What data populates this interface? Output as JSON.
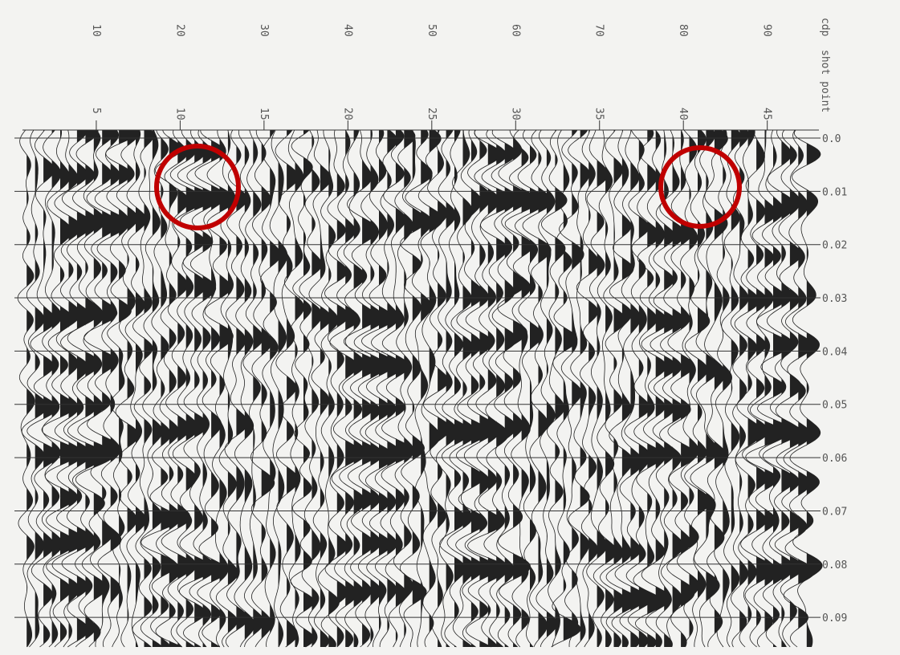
{
  "chart_data": {
    "type": "seismic",
    "x_label": "cdp",
    "x2_label": "shot point",
    "xlim": [
      1.2,
      95.2
    ],
    "xticks": [
      10,
      20,
      30,
      40,
      50,
      60,
      70,
      80,
      90
    ],
    "x2lim": [
      0.6,
      47.6
    ],
    "x2ticks": [
      5,
      10,
      15,
      20,
      25,
      30,
      35,
      40,
      45
    ],
    "ylim": [
      0,
      0.0945
    ],
    "yticks": [
      {
        "value": 0,
        "label": "0.0"
      },
      0.01,
      0.02,
      0.03,
      0.04,
      0.05,
      0.06,
      0.07,
      0.08,
      0.09
    ],
    "grid": true
  }
}
